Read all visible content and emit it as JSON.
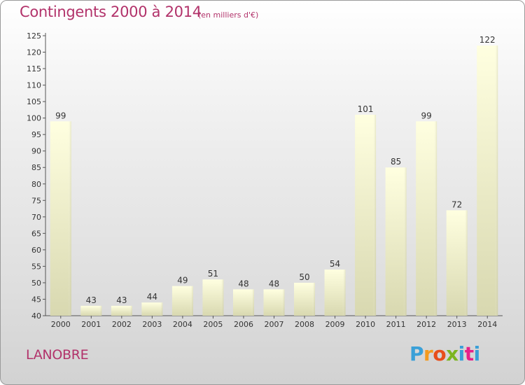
{
  "header": {
    "title": "Contingents 2000 à 2014",
    "unit_note": "(en milliers d'€)"
  },
  "footer": {
    "commune": "LANOBRE",
    "logo_text": "Proxiti",
    "logo_colors": [
      "#3aa0d8",
      "#f39a1e",
      "#e84e1b",
      "#7cb51f",
      "#3aa0d8",
      "#e8208a",
      "#3aa0d8"
    ]
  },
  "colors": {
    "title": "#b2326a",
    "bar_top": "#ffffe0",
    "bar_bottom": "#d8d8b0"
  },
  "chart_data": {
    "type": "bar",
    "categories": [
      "2000",
      "2001",
      "2002",
      "2003",
      "2004",
      "2005",
      "2006",
      "2007",
      "2008",
      "2009",
      "2010",
      "2011",
      "2012",
      "2013",
      "2014"
    ],
    "values": [
      99,
      43,
      43,
      44,
      49,
      51,
      48,
      48,
      50,
      54,
      101,
      85,
      99,
      72,
      122
    ],
    "title": "Contingents 2000 à 2014",
    "subtitle": "(en milliers d'€)",
    "xlabel": "",
    "ylabel": "",
    "ylim": [
      40,
      125
    ],
    "yticks": [
      40,
      45,
      50,
      55,
      60,
      65,
      70,
      75,
      80,
      85,
      90,
      95,
      100,
      105,
      110,
      115,
      120,
      125
    ],
    "grid": false,
    "legend": "none",
    "data_labels": true
  }
}
